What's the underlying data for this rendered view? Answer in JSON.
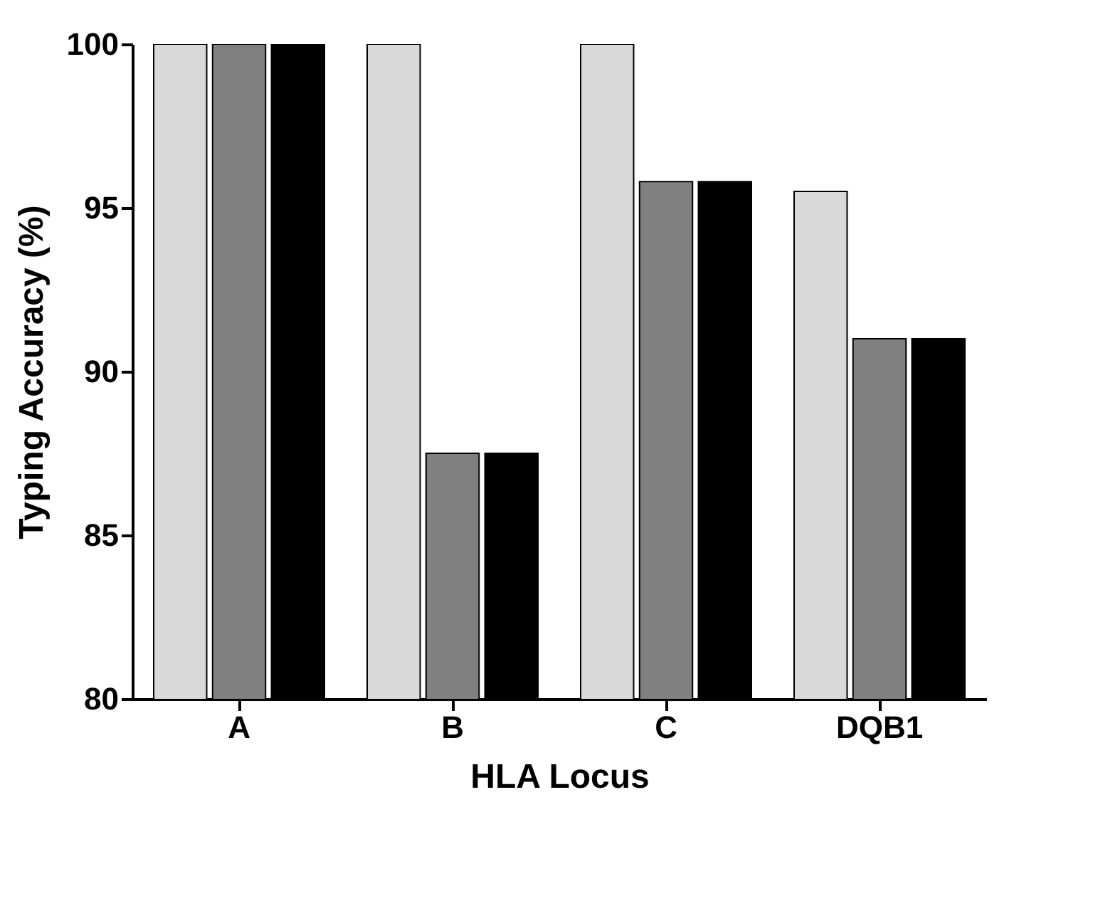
{
  "chart_data": {
    "type": "bar",
    "xlabel": "HLA Locus",
    "ylabel": "Typing Accuracy (%)",
    "categories": [
      "A",
      "B",
      "C",
      "DQB1"
    ],
    "series": [
      {
        "color": "#d9d9d9",
        "values": [
          100,
          100,
          100,
          95.5
        ]
      },
      {
        "color": "#808080",
        "values": [
          100,
          87.5,
          95.8,
          91
        ]
      },
      {
        "color": "#000000",
        "values": [
          100,
          87.5,
          95.8,
          91
        ]
      }
    ],
    "ylim": [
      80,
      100
    ],
    "yticks": [
      80,
      85,
      90,
      95,
      100
    ],
    "grid": false,
    "legend": false
  }
}
